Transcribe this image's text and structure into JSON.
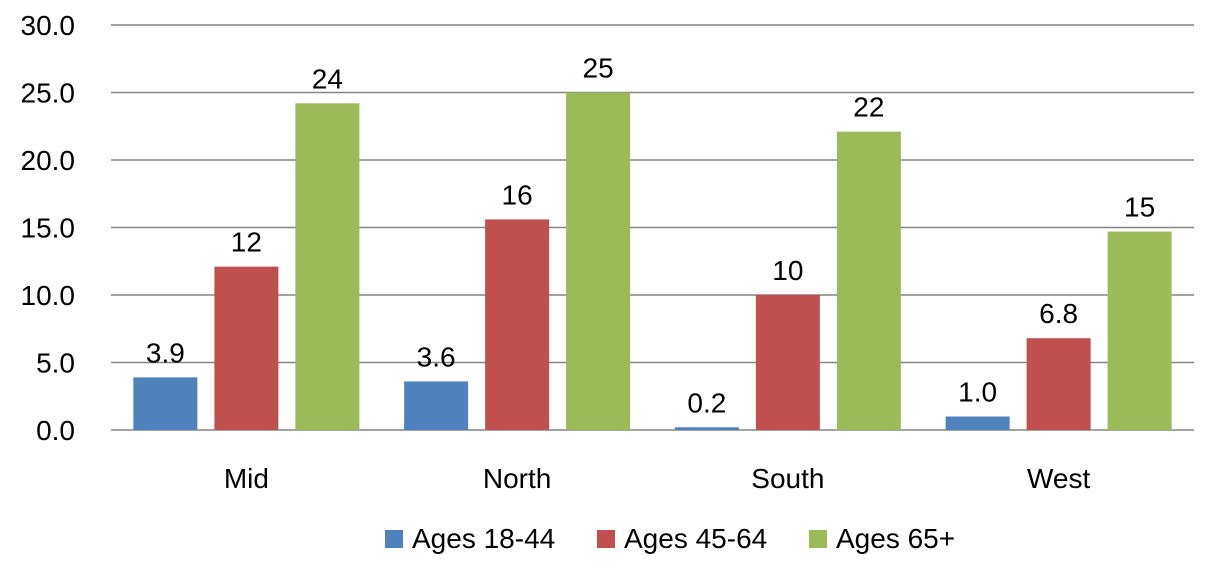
{
  "chart_data": {
    "type": "bar",
    "title": "",
    "xlabel": "",
    "ylabel": "",
    "categories": [
      "Mid",
      "North",
      "South",
      "West"
    ],
    "series": [
      {
        "name": "Ages 18-44",
        "color": "#4F81BD",
        "values": [
          3.9,
          3.6,
          0.2,
          1.0
        ],
        "labels": [
          "3.9",
          "3.6",
          "0.2",
          "1.0"
        ]
      },
      {
        "name": "Ages 45-64",
        "color": "#C0504D",
        "values": [
          12.1,
          15.6,
          10.0,
          6.8
        ],
        "labels": [
          "12",
          "16",
          "10",
          "6.8"
        ]
      },
      {
        "name": "Ages 65+",
        "color": "#9BBB59",
        "values": [
          24.2,
          25.0,
          22.1,
          14.7
        ],
        "labels": [
          "24",
          "25",
          "22",
          "15"
        ]
      }
    ],
    "ylim": [
      0,
      30
    ],
    "yticks": [
      "0.0",
      "5.0",
      "10.0",
      "15.0",
      "20.0",
      "25.0",
      "30.0"
    ],
    "grid": true,
    "legend_position": "bottom"
  }
}
